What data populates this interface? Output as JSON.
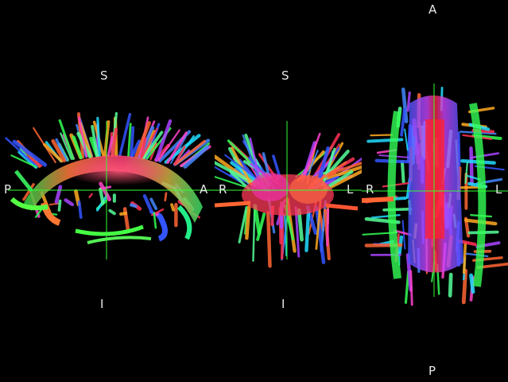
{
  "viewports": {
    "sagittal": {
      "orientation": {
        "top": "S",
        "bottom": "I",
        "left": "P",
        "right": "A"
      }
    },
    "coronal": {
      "orientation": {
        "top": "S",
        "bottom": "I",
        "left": "R",
        "right": "L"
      }
    },
    "axial": {
      "orientation": {
        "top": "A",
        "bottom": "P",
        "left": "R",
        "right": "L"
      }
    }
  },
  "colors": {
    "background": "#000000",
    "crosshair": "#33ff33",
    "label": "#e8e8e8"
  }
}
